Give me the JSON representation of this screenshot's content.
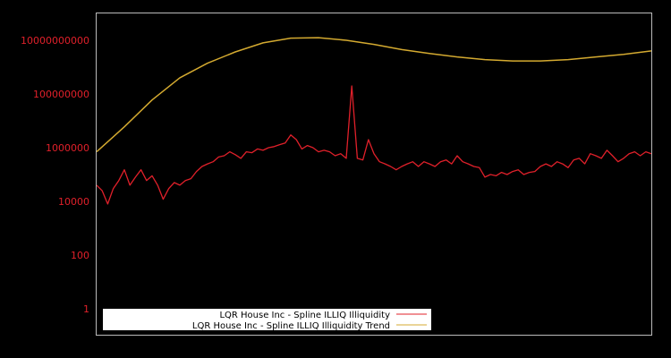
{
  "chart_data": {
    "type": "line",
    "title": "",
    "xlabel": "",
    "ylabel": "",
    "yscale": "log",
    "ylim": [
      0.3,
      300000000000
    ],
    "y_ticks": [
      {
        "value": 1,
        "label": "1"
      },
      {
        "value": 100,
        "label": "100"
      },
      {
        "value": 10000,
        "label": "10000"
      },
      {
        "value": 1000000,
        "label": "1000000"
      },
      {
        "value": 100000000,
        "label": "100000000"
      },
      {
        "value": 10000000000,
        "label": "10000000000"
      }
    ],
    "x_ticks": [],
    "grid": false,
    "legend_position": "lower left",
    "legend": [
      {
        "label": "LQR House Inc - Spline ILLIQ Illiquidity",
        "color": "#e0202a"
      },
      {
        "label": "LQR House Inc - Spline ILLIQ Illiquidity Trend",
        "color": "#d4aa30"
      }
    ],
    "series": [
      {
        "name": "LQR House Inc - Spline ILLIQ Illiquidity",
        "color": "#e0202a",
        "x_frac": [
          0.0,
          0.01,
          0.02,
          0.03,
          0.04,
          0.05,
          0.06,
          0.07,
          0.08,
          0.09,
          0.1,
          0.11,
          0.12,
          0.13,
          0.14,
          0.15,
          0.16,
          0.17,
          0.18,
          0.19,
          0.2,
          0.21,
          0.22,
          0.23,
          0.24,
          0.25,
          0.26,
          0.27,
          0.28,
          0.29,
          0.3,
          0.31,
          0.32,
          0.33,
          0.34,
          0.35,
          0.36,
          0.37,
          0.38,
          0.39,
          0.4,
          0.41,
          0.42,
          0.43,
          0.44,
          0.45,
          0.46,
          0.47,
          0.48,
          0.49,
          0.5,
          0.51,
          0.52,
          0.53,
          0.54,
          0.55,
          0.56,
          0.57,
          0.58,
          0.59,
          0.6,
          0.61,
          0.62,
          0.63,
          0.64,
          0.65,
          0.66,
          0.67,
          0.68,
          0.69,
          0.7,
          0.71,
          0.72,
          0.73,
          0.74,
          0.75,
          0.76,
          0.77,
          0.78,
          0.79,
          0.8,
          0.81,
          0.82,
          0.83,
          0.84,
          0.85,
          0.86,
          0.87,
          0.88,
          0.89,
          0.9,
          0.91,
          0.92,
          0.93,
          0.94,
          0.95,
          0.96,
          0.97,
          0.98,
          0.99,
          1.0
        ],
        "values": [
          40000,
          25000,
          8000,
          30000,
          60000,
          150000,
          40000,
          80000,
          150000,
          60000,
          90000,
          40000,
          12000,
          30000,
          50000,
          40000,
          60000,
          70000,
          130000,
          200000,
          250000,
          300000,
          450000,
          500000,
          700000,
          550000,
          400000,
          700000,
          650000,
          900000,
          800000,
          1000000,
          1100000,
          1300000,
          1500000,
          3000000,
          2000000,
          900000,
          1200000,
          1000000,
          700000,
          800000,
          700000,
          500000,
          600000,
          400000,
          200000000,
          400000,
          350000,
          2000000,
          600000,
          300000,
          250000,
          200000,
          150000,
          200000,
          250000,
          300000,
          200000,
          300000,
          250000,
          200000,
          300000,
          350000,
          250000,
          500000,
          300000,
          250000,
          200000,
          180000,
          80000,
          100000,
          90000,
          120000,
          100000,
          130000,
          150000,
          100000,
          120000,
          130000,
          200000,
          250000,
          200000,
          300000,
          250000,
          180000,
          350000,
          400000,
          250000,
          600000,
          500000,
          400000,
          800000,
          500000,
          300000,
          400000,
          600000,
          700000,
          500000,
          700000,
          600000
        ]
      },
      {
        "name": "LQR House Inc - Spline ILLIQ Illiquidity Trend",
        "color": "#d4aa30",
        "x_frac": [
          0.0,
          0.05,
          0.1,
          0.15,
          0.2,
          0.25,
          0.3,
          0.35,
          0.4,
          0.45,
          0.5,
          0.55,
          0.6,
          0.65,
          0.7,
          0.75,
          0.8,
          0.85,
          0.9,
          0.95,
          1.0
        ],
        "values": [
          700000,
          6000000,
          60000000,
          400000000,
          1400000000,
          3700000000,
          8000000000,
          12000000000,
          12500000000,
          10000000000,
          7000000000,
          4500000000,
          3200000000,
          2400000000,
          1900000000,
          1700000000,
          1700000000,
          1900000000,
          2400000000,
          3000000000,
          4000000000
        ]
      }
    ]
  }
}
